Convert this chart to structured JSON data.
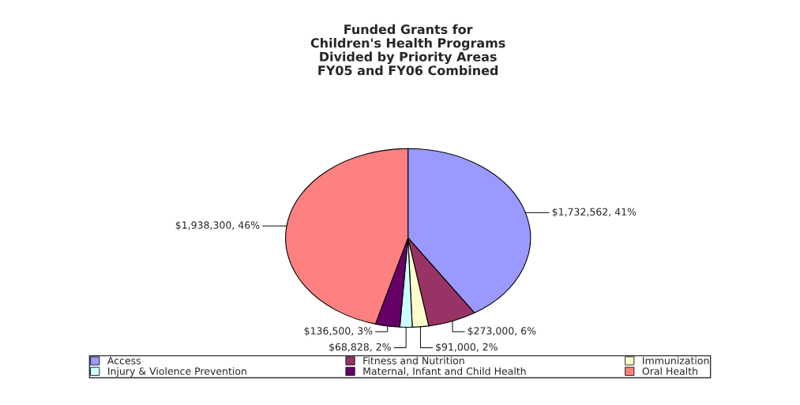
{
  "chart_data": {
    "type": "pie",
    "title": "Funded Grants for\nChildren's Health Programs\nDivided by Priority Areas\nFY05 and FY06 Combined",
    "categories": [
      "Access",
      "Fitness and Nutrition",
      "Immunization",
      "Injury & Violence Prevention",
      "Maternal, Infant and Child Health",
      "Oral Health"
    ],
    "values": [
      1732562,
      273000,
      91000,
      68828,
      136500,
      1938300
    ],
    "colors": [
      "#9999ff",
      "#993366",
      "#ffffcc",
      "#ccffff",
      "#660066",
      "#ff8080"
    ],
    "value_labels": [
      "$1,732,562, 41%",
      "$273,000, 6%",
      "$91,000, 2%",
      "$68,828, 2%",
      "$136,500, 3%",
      "$1,938,300, 46%"
    ],
    "legend": "bottom"
  }
}
